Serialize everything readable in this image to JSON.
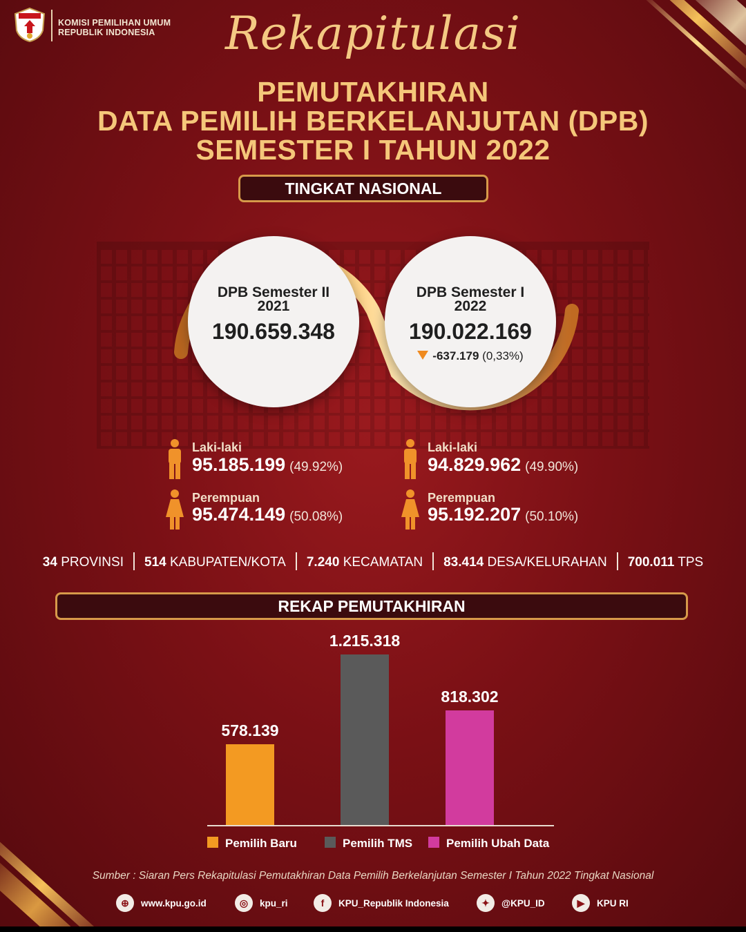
{
  "header": {
    "org_line1": "KOMISI PEMILIHAN UMUM",
    "org_line2": "REPUBLIK INDONESIA",
    "script_title": "Rekapitulasi",
    "title_line1": "PEMUTAKHIRAN",
    "title_line2": "DATA PEMILIH BERKELANJUTAN (DPB)",
    "title_line3": "SEMESTER I TAHUN 2022"
  },
  "section_national": "TINGKAT NASIONAL",
  "semester_2021": {
    "label_line1": "DPB Semester II",
    "label_line2": "2021",
    "value": "190.659.348",
    "male_label": "Laki-laki",
    "male_value": "95.185.199",
    "male_pct": "(49.92%)",
    "female_label": "Perempuan",
    "female_value": "95.474.149",
    "female_pct": "(50.08%)"
  },
  "semester_2022": {
    "label_line1": "DPB Semester I",
    "label_line2": "2022",
    "value": "190.022.169",
    "change": "-637.179",
    "change_pct": "(0,33%)",
    "male_label": "Laki-laki",
    "male_value": "94.829.962",
    "male_pct": "(49.90%)",
    "female_label": "Perempuan",
    "female_value": "95.192.207",
    "female_pct": "(50.10%)"
  },
  "regions": [
    {
      "count": "34",
      "label": "PROVINSI"
    },
    {
      "count": "514",
      "label": "KABUPATEN/KOTA"
    },
    {
      "count": "7.240",
      "label": "KECAMATAN"
    },
    {
      "count": "83.414",
      "label": "DESA/KELURAHAN"
    },
    {
      "count": "700.011",
      "label": "TPS"
    }
  ],
  "section_rekap": "REKAP PEMUTAKHIRAN",
  "chart_data": {
    "type": "bar",
    "categories": [
      "Pemilih Baru",
      "Pemilih TMS",
      "Pemilih Ubah Data"
    ],
    "values": [
      578139,
      1215318,
      818302
    ],
    "data_labels": [
      "578.139",
      "1.215.318",
      "818.302"
    ],
    "colors": [
      "#f39a22",
      "#5a5a5a",
      "#d23b9e"
    ],
    "ylim": [
      0,
      1215318
    ],
    "grid": false,
    "legend_position": "bottom"
  },
  "source": "Sumber : Siaran Pers Rekapitulasi Pemutakhiran Data Pemilih Berkelanjutan Semester I Tahun 2022 Tingkat Nasional",
  "footer": [
    {
      "icon": "globe-icon",
      "glyph": "⊕",
      "label": "www.kpu.go.id"
    },
    {
      "icon": "instagram-icon",
      "glyph": "◎",
      "label": "kpu_ri"
    },
    {
      "icon": "facebook-icon",
      "glyph": "f",
      "label": "KPU_Republik Indonesia"
    },
    {
      "icon": "twitter-icon",
      "glyph": "✦",
      "label": "@KPU_ID"
    },
    {
      "icon": "youtube-icon",
      "glyph": "▶",
      "label": "KPU RI"
    }
  ],
  "colors": {
    "background": "#7a1015",
    "gold": "#f5c77a",
    "orange": "#ef8a1f"
  }
}
